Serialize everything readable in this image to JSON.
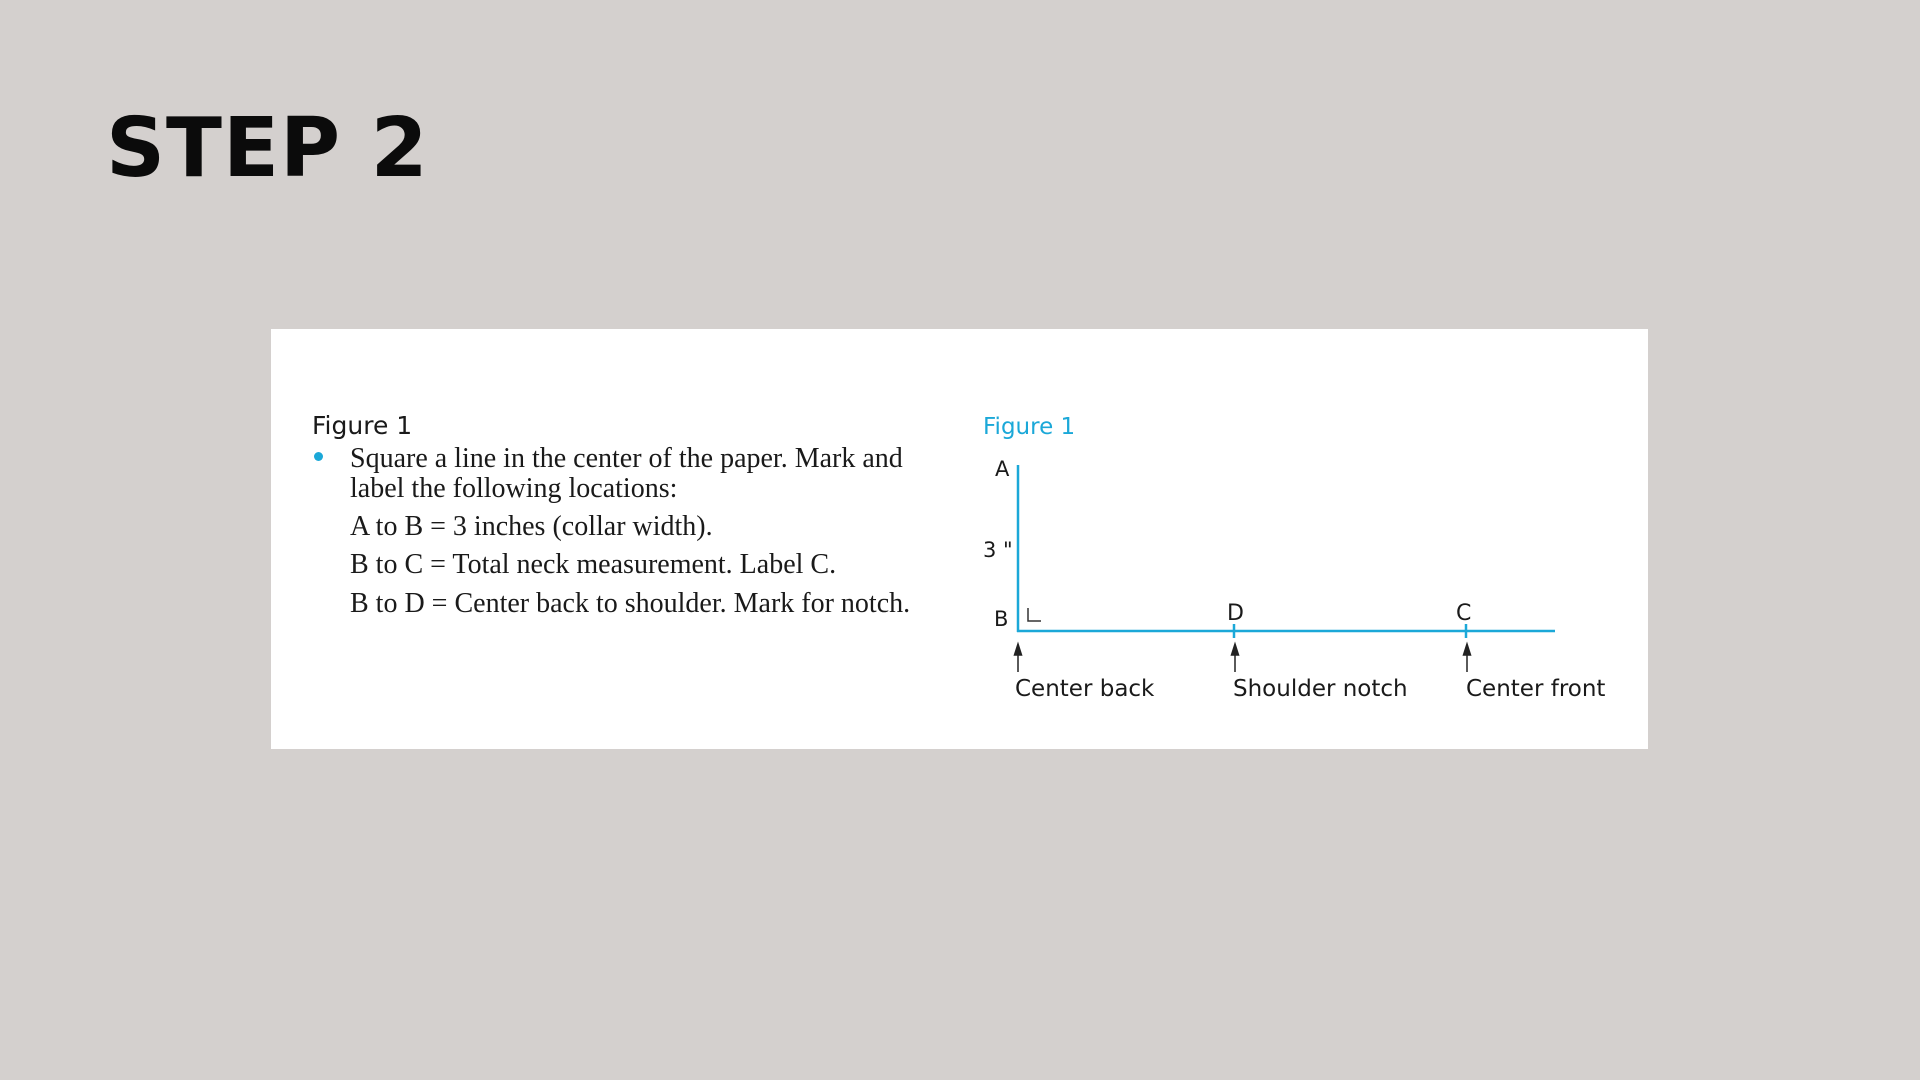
{
  "slide": {
    "title": "STEP 2"
  },
  "instructions": {
    "caption": "Figure 1",
    "bullet_line1": "Square a line in the center of the paper. Mark and",
    "bullet_line2": "label the following locations:",
    "items": [
      "A to B = 3 inches (collar width).",
      "B to C = Total neck measurement. Label C.",
      "B to D = Center back to shoulder. Mark for notch."
    ]
  },
  "figure": {
    "caption": "Figure 1",
    "accent_color": "#1ba8d8",
    "points": {
      "a": "A",
      "b": "B",
      "c": "C",
      "d": "D"
    },
    "measure": "3 \"",
    "labels": {
      "center_back": "Center back",
      "shoulder_notch": "Shoulder notch",
      "center_front": "Center front"
    }
  }
}
